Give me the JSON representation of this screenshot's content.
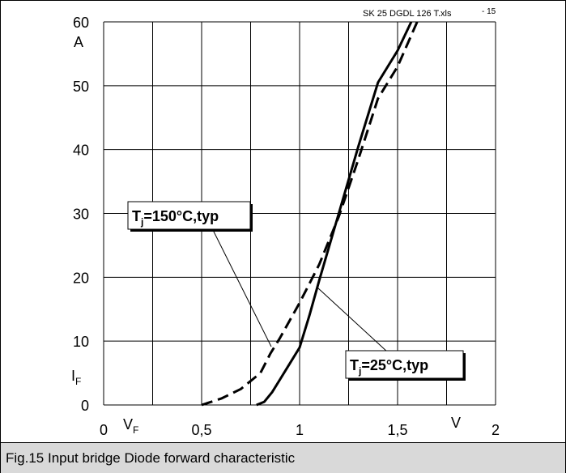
{
  "figure": {
    "file_label": "SK 25 DGDL 126 T.xls",
    "figure_number": "- 15",
    "caption": "Fig.15 Input bridge Diode forward characteristic"
  },
  "chart_data": {
    "type": "line",
    "title": "",
    "xlabel": "V_F",
    "xunit": "V",
    "ylabel": "I_F",
    "yunit": "A",
    "xlim": [
      0,
      2
    ],
    "ylim": [
      0,
      60
    ],
    "grid": true,
    "x_ticks": [
      0,
      0.5,
      1,
      1.5,
      2
    ],
    "x_tick_labels": [
      "0",
      "0,5",
      "1",
      "1,5",
      "2"
    ],
    "y_ticks": [
      0,
      10,
      20,
      30,
      40,
      50,
      60
    ],
    "y_tick_labels": [
      "0",
      "10",
      "20",
      "30",
      "40",
      "50",
      "60"
    ],
    "series": [
      {
        "name": "Tj=25°C,typ",
        "style": "solid",
        "color": "#000000",
        "x": [
          0.78,
          0.82,
          0.86,
          0.9,
          0.95,
          1.0,
          1.05,
          1.1,
          1.2,
          1.3,
          1.4,
          1.5,
          1.57
        ],
        "y": [
          0,
          0.5,
          2,
          4,
          6.5,
          9,
          14,
          19.5,
          30,
          40.5,
          50.5,
          55.5,
          60
        ]
      },
      {
        "name": "Tj=150°C,typ",
        "style": "dashed",
        "color": "#000000",
        "x": [
          0.5,
          0.6,
          0.7,
          0.8,
          0.85,
          0.9,
          1.0,
          1.1,
          1.2,
          1.3,
          1.4,
          1.5,
          1.6
        ],
        "y": [
          0,
          1,
          2.5,
          5,
          8,
          10.5,
          16,
          22,
          29.5,
          38.5,
          48,
          53,
          60
        ]
      }
    ],
    "annotations": [
      {
        "main": "T",
        "sub": "j",
        "rest": "=150°C,typ",
        "points_to_series": "Tj=150°C,typ"
      },
      {
        "main": "T",
        "sub": "j",
        "rest": "=25°C,typ",
        "points_to_series": "Tj=25°C,typ"
      }
    ]
  }
}
